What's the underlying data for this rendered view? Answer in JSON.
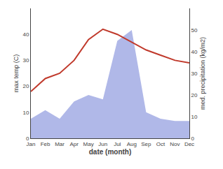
{
  "chart_data": {
    "type": "line",
    "xlabel": "date (month)",
    "ylabel": "max temp (C)",
    "y2label": "med. precipitation (kg/m2)",
    "categories": [
      "Jan",
      "Feb",
      "Mar",
      "Apr",
      "May",
      "Jun",
      "Jul",
      "Aug",
      "Sep",
      "Oct",
      "Nov",
      "Dec"
    ],
    "series": [
      {
        "type": "area",
        "axis": "y2",
        "color": "#b0b8e8",
        "values": [
          9,
          13,
          9,
          17,
          20,
          18,
          45,
          50,
          12,
          9,
          8,
          8
        ]
      },
      {
        "type": "line",
        "color": "#c0392b",
        "values": [
          18,
          23,
          25,
          30,
          38,
          42,
          40,
          37,
          34,
          32,
          30,
          29
        ]
      }
    ],
    "ylim": [
      0,
      50
    ],
    "yticks": [
      0,
      10,
      20,
      30,
      40
    ],
    "y2lim": [
      0,
      60
    ],
    "y2ticks": [
      0,
      10,
      20,
      30,
      40,
      50
    ],
    "grid": false
  }
}
